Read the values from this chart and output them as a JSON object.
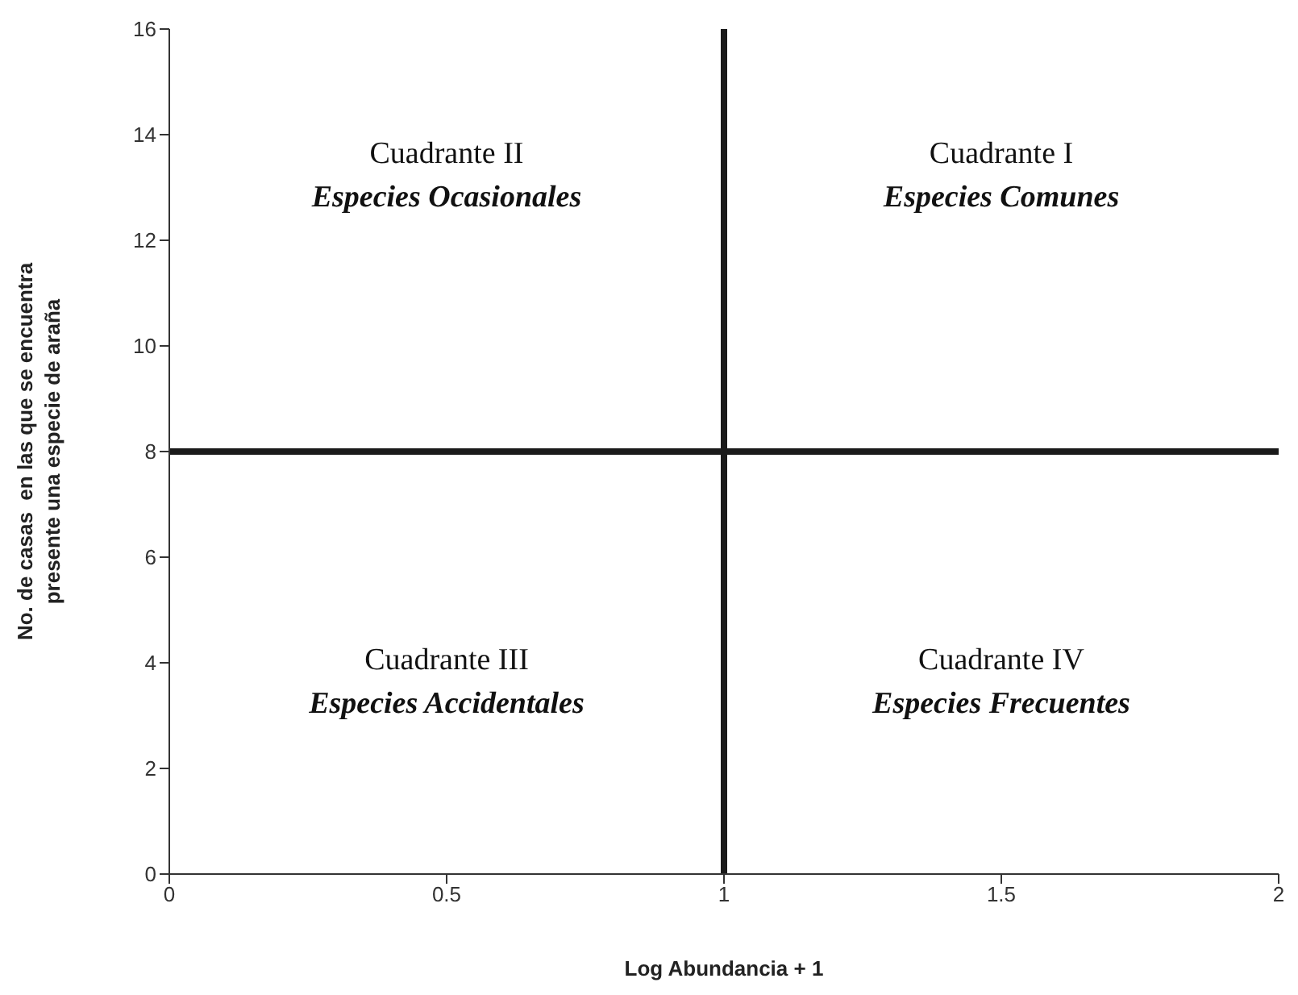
{
  "chart_data": {
    "type": "scatter",
    "xlabel": "Log Abundancia  + 1",
    "ylabel": "No. de casas  en las que se encuentra presente una especie de araña",
    "xlim": [
      0,
      2
    ],
    "xticks": [
      0,
      0.5,
      1,
      1.5,
      2
    ],
    "ylim": [
      0,
      16
    ],
    "yticks": [
      0,
      2,
      4,
      6,
      8,
      10,
      12,
      14,
      16
    ],
    "grid": false,
    "ref_lines": [
      {
        "axis": "x",
        "value": 1,
        "color": "#1a1a1a"
      },
      {
        "axis": "y",
        "value": 8,
        "color": "#1a1a1a"
      }
    ],
    "annotations": [
      "Cuadrante II",
      "Especies Ocasionales",
      "Cuadrante I",
      "Especies Comunes",
      "Cuadrante III",
      "Especies Accidentales",
      "Cuadrante IV",
      "Especies Frecuentes"
    ]
  }
}
